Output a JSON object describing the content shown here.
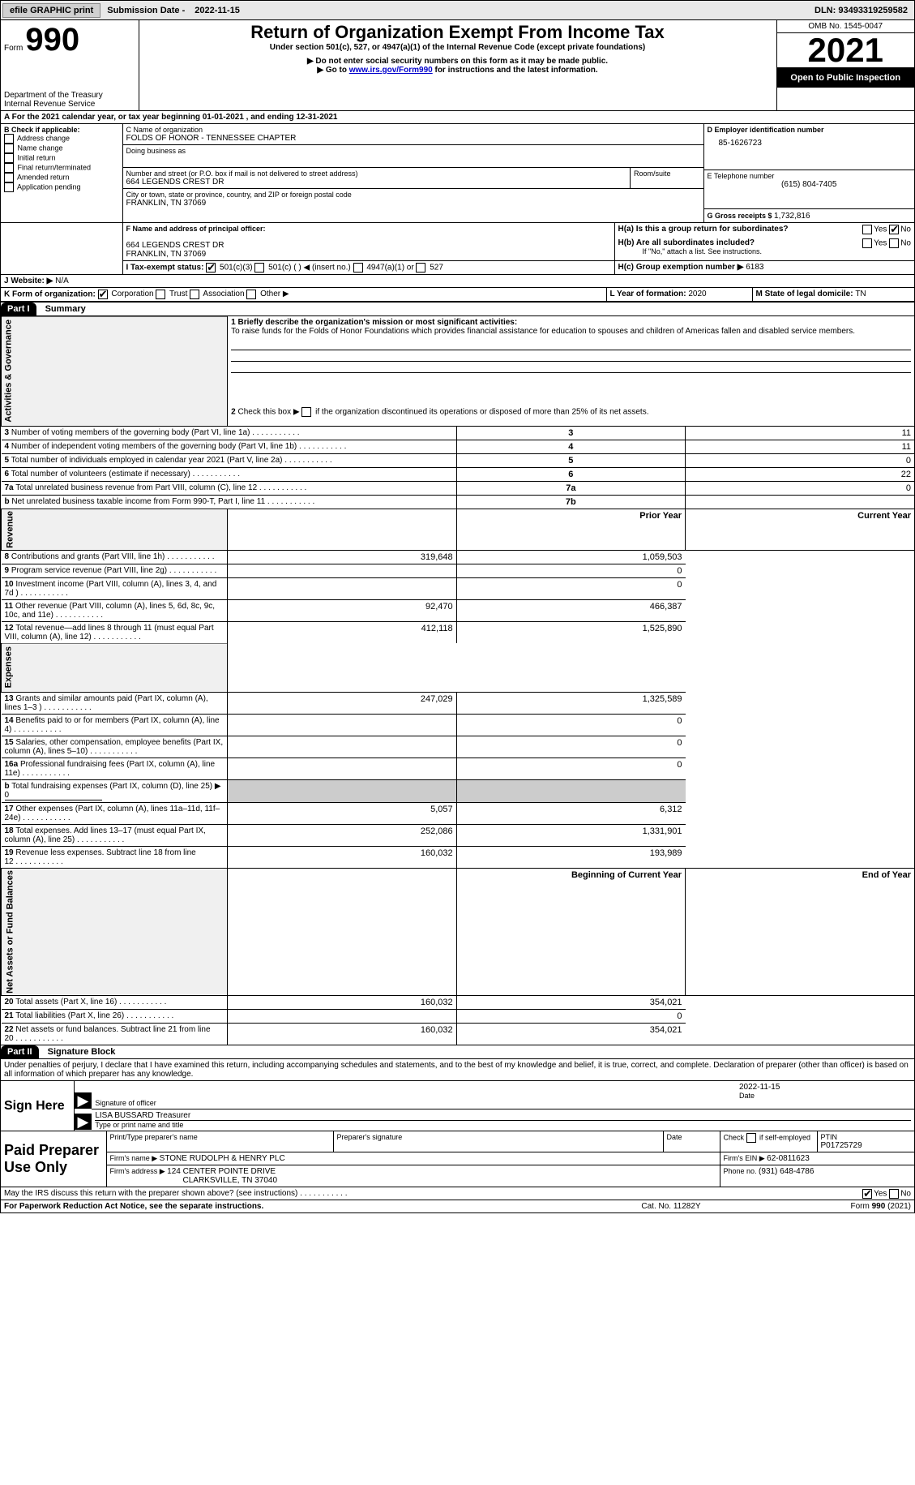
{
  "topbar": {
    "efile": "efile GRAPHIC print",
    "submission_label": "Submission Date - ",
    "submission_date": "2022-11-15",
    "dln_label": "DLN: ",
    "dln": "93493319259582"
  },
  "header": {
    "form_label": "Form",
    "form_number": "990",
    "agency1": "Department of the Treasury",
    "agency2": "Internal Revenue Service",
    "title": "Return of Organization Exempt From Income Tax",
    "subtitle": "Under section 501(c), 527, or 4947(a)(1) of the Internal Revenue Code (except private foundations)",
    "note1": "▶ Do not enter social security numbers on this form as it may be made public.",
    "note2_pre": "▶ Go to ",
    "note2_link": "www.irs.gov/Form990",
    "note2_post": " for instructions and the latest information.",
    "omb": "OMB No. 1545-0047",
    "year": "2021",
    "inspection": "Open to Public Inspection"
  },
  "periodA": {
    "text": "A  For the 2021 calendar year, or tax year beginning ",
    "begin": "01-01-2021",
    "mid": "   , and ending ",
    "end": "12-31-2021"
  },
  "boxB": {
    "label": "B Check if applicable:",
    "opts": [
      "Address change",
      "Name change",
      "Initial return",
      "Final return/terminated",
      "Amended return",
      "Application pending"
    ]
  },
  "boxC": {
    "name_label": "C Name of organization",
    "name": "FOLDS OF HONOR - TENNESSEE CHAPTER",
    "dba_label": "Doing business as",
    "dba": "",
    "street_label": "Number and street (or P.O. box if mail is not delivered to street address)",
    "room_label": "Room/suite",
    "street": "664 LEGENDS CREST DR",
    "city_label": "City or town, state or province, country, and ZIP or foreign postal code",
    "city": "FRANKLIN, TN  37069"
  },
  "boxD": {
    "label": "D Employer identification number",
    "value": "85-1626723"
  },
  "boxE": {
    "label": "E Telephone number",
    "value": "(615) 804-7405"
  },
  "boxG": {
    "label": "G Gross receipts $ ",
    "value": "1,732,816"
  },
  "boxF": {
    "label": "F Name and address of principal officer:",
    "line1": "664 LEGENDS CREST DR",
    "line2": "FRANKLIN, TN  37069"
  },
  "boxH": {
    "a": "H(a)  Is this a group return for subordinates?",
    "b": "H(b)  Are all subordinates included?",
    "note": "If \"No,\" attach a list. See instructions.",
    "c": "H(c)  Group exemption number ▶",
    "c_val": "6183",
    "yes": "Yes",
    "no": "No"
  },
  "boxI": {
    "label": "I  Tax-exempt status:",
    "opt1": "501(c)(3)",
    "opt2": "501(c) (  ) ◀ (insert no.)",
    "opt3": "4947(a)(1) or",
    "opt4": "527"
  },
  "boxJ": {
    "label": "J  Website: ▶",
    "value": "N/A"
  },
  "boxK": {
    "label": "K Form of organization:",
    "opts": [
      "Corporation",
      "Trust",
      "Association",
      "Other ▶"
    ]
  },
  "boxL": {
    "label": "L Year of formation: ",
    "value": "2020"
  },
  "boxM": {
    "label": "M State of legal domicile: ",
    "value": "TN"
  },
  "part1": {
    "label": "Part I",
    "title": "Summary"
  },
  "summary_sections": {
    "act": "Activities & Governance",
    "rev": "Revenue",
    "exp": "Expenses",
    "net": "Net Assets or Fund Balances"
  },
  "line1": {
    "label": "1  Briefly describe the organization's mission or most significant activities:",
    "text": "To raise funds for the Folds of Honor Foundations which provides financial assistance for education to spouses and children of Americas fallen and disabled service members."
  },
  "line2": "2   Check this box ▶     if the organization discontinued its operations or disposed of more than 25% of its net assets.",
  "rows_simple": [
    {
      "n": "3",
      "label": "Number of voting members of the governing body (Part VI, line 1a)",
      "box": "3",
      "val": "11"
    },
    {
      "n": "4",
      "label": "Number of independent voting members of the governing body (Part VI, line 1b)",
      "box": "4",
      "val": "11"
    },
    {
      "n": "5",
      "label": "Total number of individuals employed in calendar year 2021 (Part V, line 2a)",
      "box": "5",
      "val": "0"
    },
    {
      "n": "6",
      "label": "Total number of volunteers (estimate if necessary)",
      "box": "6",
      "val": "22"
    },
    {
      "n": "7a",
      "label": "Total unrelated business revenue from Part VIII, column (C), line 12",
      "box": "7a",
      "val": "0"
    },
    {
      "n": " b",
      "label": "Net unrelated business taxable income from Form 990-T, Part I, line 11",
      "box": "7b",
      "val": ""
    }
  ],
  "col_headers": {
    "prior": "Prior Year",
    "current": "Current Year",
    "boy": "Beginning of Current Year",
    "eoy": "End of Year"
  },
  "rows_two": [
    {
      "n": "8",
      "label": "Contributions and grants (Part VIII, line 1h)",
      "prior": "319,648",
      "curr": "1,059,503"
    },
    {
      "n": "9",
      "label": "Program service revenue (Part VIII, line 2g)",
      "prior": "",
      "curr": "0"
    },
    {
      "n": "10",
      "label": "Investment income (Part VIII, column (A), lines 3, 4, and 7d )",
      "prior": "",
      "curr": "0"
    },
    {
      "n": "11",
      "label": "Other revenue (Part VIII, column (A), lines 5, 6d, 8c, 9c, 10c, and 11e)",
      "prior": "92,470",
      "curr": "466,387"
    },
    {
      "n": "12",
      "label": "Total revenue—add lines 8 through 11 (must equal Part VIII, column (A), line 12)",
      "prior": "412,118",
      "curr": "1,525,890"
    },
    {
      "n": "13",
      "label": "Grants and similar amounts paid (Part IX, column (A), lines 1–3 )",
      "prior": "247,029",
      "curr": "1,325,589"
    },
    {
      "n": "14",
      "label": "Benefits paid to or for members (Part IX, column (A), line 4)",
      "prior": "",
      "curr": "0"
    },
    {
      "n": "15",
      "label": "Salaries, other compensation, employee benefits (Part IX, column (A), lines 5–10)",
      "prior": "",
      "curr": "0"
    },
    {
      "n": "16a",
      "label": "Professional fundraising fees (Part IX, column (A), line 11e)",
      "prior": "",
      "curr": "0"
    },
    {
      "n": "  b",
      "label": "Total fundraising expenses (Part IX, column (D), line 25) ▶",
      "prior": "GRAY",
      "curr": "GRAY",
      "extra": "0"
    },
    {
      "n": "17",
      "label": "Other expenses (Part IX, column (A), lines 11a–11d, 11f–24e)",
      "prior": "5,057",
      "curr": "6,312"
    },
    {
      "n": "18",
      "label": "Total expenses. Add lines 13–17 (must equal Part IX, column (A), line 25)",
      "prior": "252,086",
      "curr": "1,331,901"
    },
    {
      "n": "19",
      "label": "Revenue less expenses. Subtract line 18 from line 12",
      "prior": "160,032",
      "curr": "193,989"
    }
  ],
  "rows_net": [
    {
      "n": "20",
      "label": "Total assets (Part X, line 16)",
      "prior": "160,032",
      "curr": "354,021"
    },
    {
      "n": "21",
      "label": "Total liabilities (Part X, line 26)",
      "prior": "",
      "curr": "0"
    },
    {
      "n": "22",
      "label": "Net assets or fund balances. Subtract line 21 from line 20",
      "prior": "160,032",
      "curr": "354,021"
    }
  ],
  "part2": {
    "label": "Part II",
    "title": "Signature Block"
  },
  "sig": {
    "penalty": "Under penalties of perjury, I declare that I have examined this return, including accompanying schedules and statements, and to the best of my knowledge and belief, it is true, correct, and complete. Declaration of preparer (other than officer) is based on all information of which preparer has any knowledge.",
    "sign_here": "Sign Here",
    "sig_of_officer": "Signature of officer",
    "date_label": "Date",
    "date": "2022-11-15",
    "name": "LISA BUSSARD  Treasurer",
    "name_label": "Type or print name and title",
    "paid": "Paid Preparer Use Only",
    "prep_name_label": "Print/Type preparer's name",
    "prep_sig_label": "Preparer's signature",
    "check_label": "Check      if self-employed",
    "ptin_label": "PTIN",
    "ptin": "P01725729",
    "firm_name_label": "Firm's name    ▶ ",
    "firm_name": "STONE RUDOLPH & HENRY PLC",
    "firm_ein_label": "Firm's EIN ▶ ",
    "firm_ein": "62-0811623",
    "firm_addr_label": "Firm's address ▶ ",
    "firm_addr": "124 CENTER POINTE DRIVE",
    "firm_city": "CLARKSVILLE, TN  37040",
    "phone_label": "Phone no. ",
    "phone": "(931) 648-4786"
  },
  "footer": {
    "discuss": "May the IRS discuss this return with the preparer shown above? (see instructions)",
    "yes": "Yes",
    "no": "No",
    "paperwork": "For Paperwork Reduction Act Notice, see the separate instructions.",
    "cat": "Cat. No. 11282Y",
    "form": "Form 990 (2021)"
  },
  "colors": {
    "black": "#000000",
    "gray_bg": "#e8e8e8",
    "gray_cell": "#cccccc",
    "link": "#0000cc"
  }
}
